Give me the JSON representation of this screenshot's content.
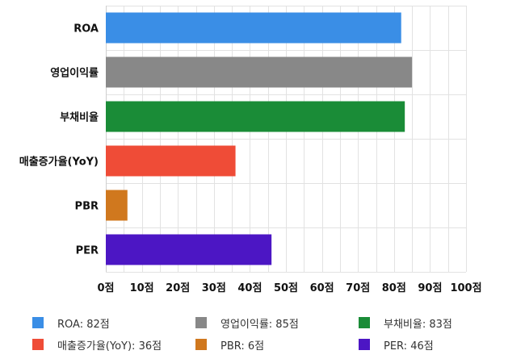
{
  "chart_data": {
    "type": "bar",
    "orientation": "horizontal",
    "categories": [
      "ROA",
      "영업이익률",
      "부채비율",
      "매출증가율(YoY)",
      "PBR",
      "PER"
    ],
    "values": [
      82,
      85,
      83,
      36,
      6,
      46
    ],
    "colors": [
      "#3a8ee6",
      "#888888",
      "#1a8c37",
      "#ef4c37",
      "#d0781e",
      "#4c16c4"
    ],
    "xlim": [
      0,
      100
    ],
    "xticks": [
      0,
      10,
      20,
      30,
      40,
      50,
      60,
      70,
      80,
      90,
      100
    ],
    "tick_labels": [
      "0점",
      "10점",
      "20점",
      "30점",
      "40점",
      "50점",
      "60점",
      "70점",
      "80점",
      "90점",
      "100점"
    ],
    "grid": true,
    "legend_position": "bottom",
    "legend": [
      {
        "label": "ROA: 82점",
        "color": "#3a8ee6"
      },
      {
        "label": "영업이익률: 85점",
        "color": "#888888"
      },
      {
        "label": "부채비율: 83점",
        "color": "#1a8c37"
      },
      {
        "label": "매출증가율(YoY): 36점",
        "color": "#ef4c37"
      },
      {
        "label": "PBR: 6점",
        "color": "#d0781e"
      },
      {
        "label": "PER: 46점",
        "color": "#4c16c4"
      }
    ]
  }
}
